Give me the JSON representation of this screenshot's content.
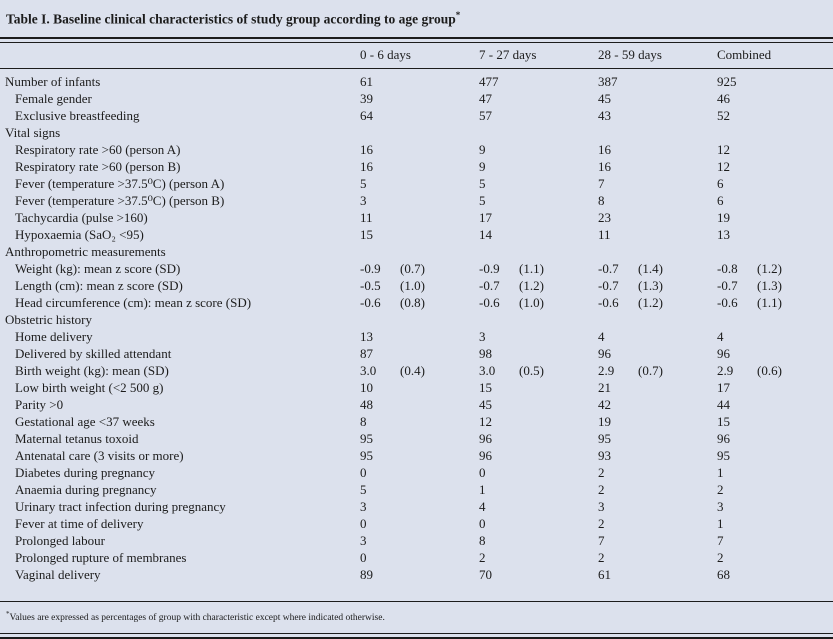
{
  "page": {
    "background": "#dce1ed",
    "text_color": "#1c1c1c",
    "rule_color": "#1c1c1c"
  },
  "table": {
    "title": "Table I. Baseline clinical characteristics of study group according to age group",
    "title_superscript": "*",
    "columns": [
      "0 - 6 days",
      "7 - 27 days",
      "28 - 59 days",
      "Combined"
    ],
    "rows": [
      {
        "label": "Number of infants",
        "indent": 0,
        "section": false,
        "values": [
          "61",
          "",
          "477",
          "",
          "387",
          "",
          "925",
          ""
        ]
      },
      {
        "label": "Female gender",
        "indent": 1,
        "section": false,
        "values": [
          "39",
          "",
          "47",
          "",
          "45",
          "",
          "46",
          ""
        ]
      },
      {
        "label": "Exclusive breastfeeding",
        "indent": 1,
        "section": false,
        "values": [
          "64",
          "",
          "57",
          "",
          "43",
          "",
          "52",
          ""
        ]
      },
      {
        "label": "Vital signs",
        "indent": 0,
        "section": true,
        "values": [
          "",
          "",
          "",
          "",
          "",
          "",
          "",
          ""
        ]
      },
      {
        "label": "Respiratory rate >60 (person A)",
        "indent": 1,
        "section": false,
        "values": [
          "16",
          "",
          "9",
          "",
          "16",
          "",
          "12",
          ""
        ]
      },
      {
        "label": "Respiratory rate >60 (person B)",
        "indent": 1,
        "section": false,
        "values": [
          "16",
          "",
          "9",
          "",
          "16",
          "",
          "12",
          ""
        ]
      },
      {
        "label": "Fever (temperature >37.5⁰C) (person A)",
        "indent": 1,
        "section": false,
        "values": [
          "5",
          "",
          "5",
          "",
          "7",
          "",
          "6",
          ""
        ]
      },
      {
        "label": "Fever (temperature >37.5⁰C) (person B)",
        "indent": 1,
        "section": false,
        "values": [
          "3",
          "",
          "5",
          "",
          "8",
          "",
          "6",
          ""
        ]
      },
      {
        "label": "Tachycardia (pulse >160)",
        "indent": 1,
        "section": false,
        "values": [
          "11",
          "",
          "17",
          "",
          "23",
          "",
          "19",
          ""
        ]
      },
      {
        "label": "Hypoxaemia (SaO₂ <95)",
        "indent": 1,
        "section": false,
        "values": [
          "15",
          "",
          "14",
          "",
          "11",
          "",
          "13",
          ""
        ]
      },
      {
        "label": "Anthropometric measurements",
        "indent": 0,
        "section": true,
        "values": [
          "",
          "",
          "",
          "",
          "",
          "",
          "",
          ""
        ]
      },
      {
        "label": "Weight (kg): mean z score (SD)",
        "indent": 1,
        "section": false,
        "values": [
          "-0.9",
          "(0.7)",
          "-0.9",
          "(1.1)",
          "-0.7",
          "(1.4)",
          "-0.8",
          "(1.2)"
        ]
      },
      {
        "label": "Length (cm): mean z score (SD)",
        "indent": 1,
        "section": false,
        "values": [
          "-0.5",
          "(1.0)",
          "-0.7",
          "(1.2)",
          "-0.7",
          "(1.3)",
          "-0.7",
          "(1.3)"
        ]
      },
      {
        "label": "Head circumference (cm): mean z score (SD)",
        "indent": 1,
        "section": false,
        "values": [
          "-0.6",
          "(0.8)",
          "-0.6",
          "(1.0)",
          "-0.6",
          "(1.2)",
          "-0.6",
          "(1.1)"
        ]
      },
      {
        "label": "Obstetric history",
        "indent": 0,
        "section": true,
        "values": [
          "",
          "",
          "",
          "",
          "",
          "",
          "",
          ""
        ]
      },
      {
        "label": "Home delivery",
        "indent": 1,
        "section": false,
        "values": [
          "13",
          "",
          "3",
          "",
          "4",
          "",
          "4",
          ""
        ]
      },
      {
        "label": "Delivered by skilled attendant",
        "indent": 1,
        "section": false,
        "values": [
          "87",
          "",
          "98",
          "",
          "96",
          "",
          "96",
          ""
        ]
      },
      {
        "label": "Birth weight (kg): mean (SD)",
        "indent": 1,
        "section": false,
        "values": [
          "3.0",
          "(0.4)",
          "3.0",
          "(0.5)",
          "2.9",
          "(0.7)",
          "2.9",
          "(0.6)"
        ]
      },
      {
        "label": "Low birth weight (<2 500 g)",
        "indent": 1,
        "section": false,
        "values": [
          "10",
          "",
          "15",
          "",
          "21",
          "",
          "17",
          ""
        ]
      },
      {
        "label": "Parity >0",
        "indent": 1,
        "section": false,
        "values": [
          "48",
          "",
          "45",
          "",
          "42",
          "",
          "44",
          ""
        ]
      },
      {
        "label": "Gestational age <37 weeks",
        "indent": 1,
        "section": false,
        "values": [
          "8",
          "",
          "12",
          "",
          "19",
          "",
          "15",
          ""
        ]
      },
      {
        "label": "Maternal tetanus toxoid",
        "indent": 1,
        "section": false,
        "values": [
          "95",
          "",
          "96",
          "",
          "95",
          "",
          "96",
          ""
        ]
      },
      {
        "label": "Antenatal care (3 visits or more)",
        "indent": 1,
        "section": false,
        "values": [
          "95",
          "",
          "96",
          "",
          "93",
          "",
          "95",
          ""
        ]
      },
      {
        "label": "Diabetes during pregnancy",
        "indent": 1,
        "section": false,
        "values": [
          "0",
          "",
          "0",
          "",
          "2",
          "",
          "1",
          ""
        ]
      },
      {
        "label": "Anaemia during pregnancy",
        "indent": 1,
        "section": false,
        "values": [
          "5",
          "",
          "1",
          "",
          "2",
          "",
          "2",
          ""
        ]
      },
      {
        "label": "Urinary tract infection during pregnancy",
        "indent": 1,
        "section": false,
        "values": [
          "3",
          "",
          "4",
          "",
          "3",
          "",
          "3",
          ""
        ]
      },
      {
        "label": "Fever at time of delivery",
        "indent": 1,
        "section": false,
        "values": [
          "0",
          "",
          "0",
          "",
          "2",
          "",
          "1",
          ""
        ]
      },
      {
        "label": "Prolonged labour",
        "indent": 1,
        "section": false,
        "values": [
          "3",
          "",
          "8",
          "",
          "7",
          "",
          "7",
          ""
        ]
      },
      {
        "label": "Prolonged rupture of membranes",
        "indent": 1,
        "section": false,
        "values": [
          "0",
          "",
          "2",
          "",
          "2",
          "",
          "2",
          ""
        ]
      },
      {
        "label": "Vaginal delivery",
        "indent": 1,
        "section": false,
        "values": [
          "89",
          "",
          "70",
          "",
          "61",
          "",
          "68",
          ""
        ]
      }
    ],
    "footnote_superscript": "*",
    "footnote": "Values are expressed as percentages of group with characteristic except where indicated otherwise."
  }
}
